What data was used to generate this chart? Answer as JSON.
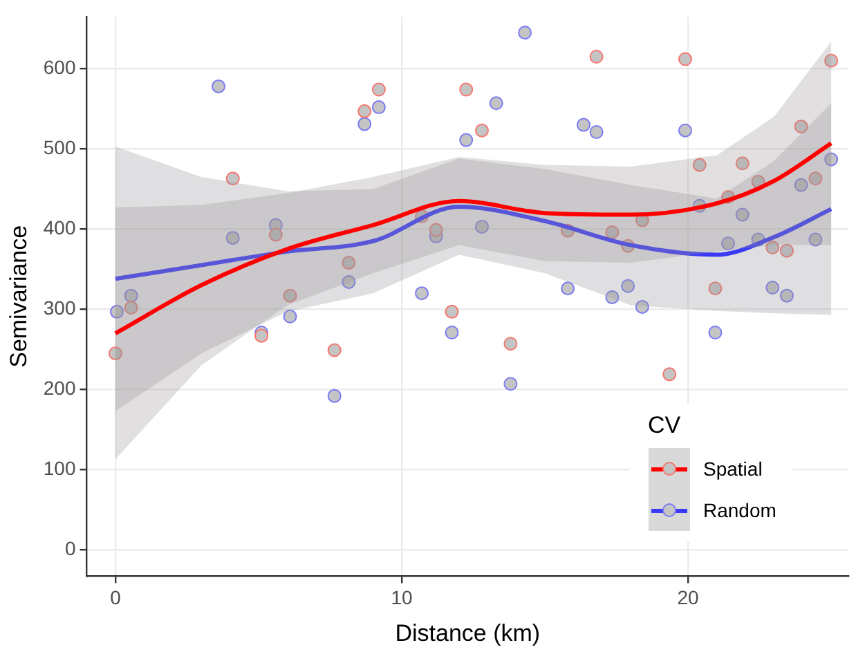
{
  "chart_data": {
    "type": "scatter",
    "xlabel": "Distance (km)",
    "ylabel": "Semivariance",
    "legend_title": "CV",
    "xlim": [
      -1,
      25.6
    ],
    "ylim": [
      -33,
      665
    ],
    "xticks": [
      0,
      10,
      20
    ],
    "yticks": [
      0,
      100,
      200,
      300,
      400,
      500,
      600
    ],
    "grid": true,
    "legend": "bottom right",
    "line_style": "solid",
    "series": [
      {
        "name": "Spatial",
        "marker": "circle",
        "color": "#f8766d",
        "x": [
          0,
          0.55,
          4.1,
          5.6,
          6.1,
          5.1,
          7.65,
          8.15,
          8.7,
          9.2,
          10.7,
          11.2,
          11.75,
          12.25,
          12.8,
          13.8,
          15.8,
          16.8,
          17.35,
          17.9,
          18.4,
          19.35,
          19.9,
          20.4,
          20.95,
          21.4,
          21.9,
          22.45,
          22.95,
          23.45,
          23.95,
          24.45,
          25.0
        ],
        "values": [
          245,
          302,
          463,
          393,
          317,
          267,
          249,
          358,
          547,
          574,
          416,
          399,
          297,
          574,
          523,
          257,
          398,
          615,
          396,
          379,
          411,
          219,
          612,
          480,
          326,
          440,
          482,
          459,
          377,
          373,
          528,
          463,
          610
        ]
      },
      {
        "name": "Random",
        "marker": "circle",
        "color": "#7b7bf5",
        "x": [
          0.05,
          0.55,
          3.6,
          4.1,
          5.6,
          5.1,
          6.1,
          7.65,
          8.15,
          8.7,
          9.2,
          10.7,
          11.2,
          11.75,
          12.25,
          12.8,
          13.3,
          13.8,
          14.3,
          15.8,
          16.35,
          16.8,
          17.35,
          17.9,
          18.4,
          19.9,
          20.4,
          20.95,
          21.4,
          21.9,
          22.45,
          22.95,
          23.45,
          23.95,
          24.45,
          25.0
        ],
        "values": [
          297,
          317,
          578,
          389,
          405,
          271,
          291,
          192,
          334,
          531,
          552,
          320,
          391,
          271,
          511,
          403,
          557,
          207,
          645,
          326,
          530,
          521,
          315,
          329,
          303,
          523,
          429,
          271,
          382,
          418,
          387,
          327,
          317,
          455,
          387,
          487
        ]
      },
      {
        "type": "line",
        "marker": "none",
        "color": "#ff0000",
        "x": [
          0,
          3,
          6,
          9,
          12,
          15,
          18,
          21,
          23,
          25
        ],
        "values": [
          270,
          330,
          375,
          405,
          435,
          420,
          418,
          432,
          460,
          507
        ],
        "lower": [
          113,
          230,
          305,
          345,
          380,
          360,
          358,
          372,
          380,
          380
        ],
        "upper": [
          427,
          430,
          445,
          465,
          490,
          480,
          478,
          492,
          540,
          634
        ]
      },
      {
        "type": "line",
        "marker": "none",
        "color": "#3a3af5",
        "x": [
          0,
          3,
          6,
          9,
          12,
          15,
          18,
          21,
          23,
          25
        ],
        "values": [
          338,
          355,
          372,
          385,
          428,
          410,
          380,
          368,
          390,
          425
        ],
        "lower": [
          173,
          245,
          297,
          320,
          368,
          345,
          305,
          298,
          295,
          293
        ],
        "upper": [
          503,
          465,
          447,
          450,
          488,
          475,
          455,
          438,
          485,
          557
        ]
      }
    ]
  }
}
